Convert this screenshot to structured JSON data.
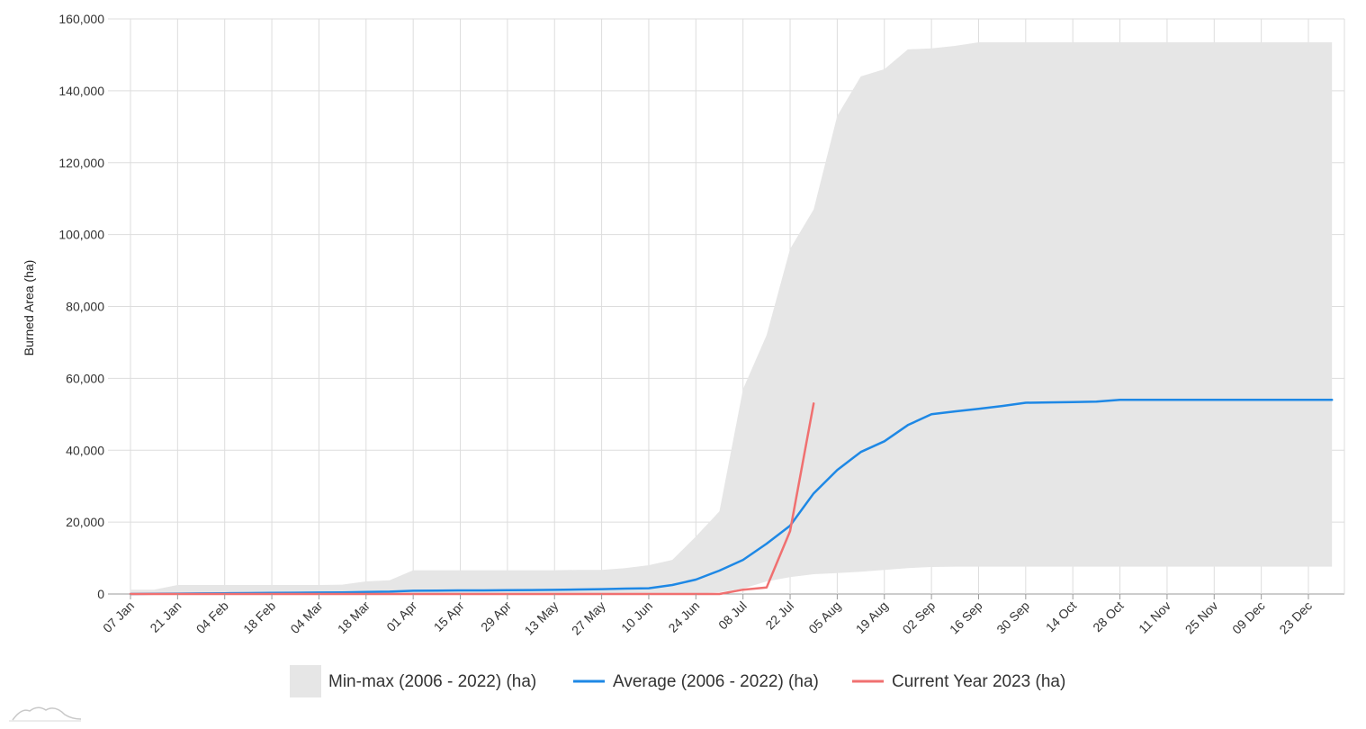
{
  "chart_data": {
    "type": "area",
    "title": "",
    "xlabel": "",
    "ylabel": "Burned Area (ha)",
    "ylim": [
      0,
      160000
    ],
    "y_ticks": [
      0,
      20000,
      40000,
      60000,
      80000,
      100000,
      120000,
      140000,
      160000
    ],
    "y_tick_labels": [
      "0",
      "20,000",
      "40,000",
      "60,000",
      "80,000",
      "100,000",
      "120,000",
      "140,000",
      "160,000"
    ],
    "x_tick_labels": [
      "07 Jan",
      "21 Jan",
      "04 Feb",
      "18 Feb",
      "04 Mar",
      "18 Mar",
      "01 Apr",
      "15 Apr",
      "29 Apr",
      "13 May",
      "27 May",
      "10 Jun",
      "24 Jun",
      "08 Jul",
      "22 Jul",
      "05 Aug",
      "19 Aug",
      "02 Sep",
      "16 Sep",
      "30 Sep",
      "14 Oct",
      "28 Oct",
      "11 Nov",
      "25 Nov",
      "09 Dec",
      "23 Dec"
    ],
    "x": [
      "07 Jan",
      "14 Jan",
      "21 Jan",
      "28 Jan",
      "04 Feb",
      "11 Feb",
      "18 Feb",
      "25 Feb",
      "04 Mar",
      "11 Mar",
      "18 Mar",
      "25 Mar",
      "01 Apr",
      "08 Apr",
      "15 Apr",
      "22 Apr",
      "29 Apr",
      "06 May",
      "13 May",
      "20 May",
      "27 May",
      "03 Jun",
      "10 Jun",
      "17 Jun",
      "24 Jun",
      "01 Jul",
      "08 Jul",
      "15 Jul",
      "22 Jul",
      "29 Jul",
      "05 Aug",
      "12 Aug",
      "19 Aug",
      "26 Aug",
      "02 Sep",
      "09 Sep",
      "16 Sep",
      "23 Sep",
      "30 Sep",
      "07 Oct",
      "14 Oct",
      "21 Oct",
      "28 Oct",
      "04 Nov",
      "11 Nov",
      "18 Nov",
      "25 Nov",
      "02 Dec",
      "09 Dec",
      "16 Dec",
      "23 Dec",
      "30 Dec"
    ],
    "series": [
      {
        "name": "Min-max (2006 - 2022) (ha)",
        "kind": "range",
        "color": "#e6e6e6",
        "min": [
          0,
          0,
          0,
          0,
          0,
          0,
          0,
          0,
          0,
          0,
          0,
          0,
          0,
          0,
          0,
          0,
          0,
          0,
          0,
          0,
          0,
          0,
          0,
          0,
          0,
          500,
          1500,
          3500,
          4700,
          5500,
          5800,
          6200,
          6700,
          7200,
          7500,
          7600,
          7600,
          7600,
          7600,
          7600,
          7600,
          7600,
          7600,
          7600,
          7600,
          7600,
          7600,
          7600,
          7600,
          7600,
          7600,
          7600
        ],
        "max": [
          1200,
          1200,
          2500,
          2500,
          2500,
          2500,
          2500,
          2500,
          2500,
          2600,
          3500,
          3800,
          6600,
          6600,
          6600,
          6600,
          6600,
          6600,
          6600,
          6700,
          6700,
          7200,
          8000,
          9500,
          16000,
          23000,
          57000,
          72000,
          96000,
          107000,
          133000,
          144000,
          146000,
          151500,
          151800,
          152500,
          153500,
          153500,
          153500,
          153500,
          153500,
          153500,
          153500,
          153500,
          153500,
          153500,
          153500,
          153500,
          153500,
          153500,
          153500,
          153500
        ]
      },
      {
        "name": "Average (2006 - 2022) (ha)",
        "kind": "line",
        "color": "#1e88e5",
        "values": [
          0,
          50,
          100,
          150,
          200,
          250,
          300,
          350,
          400,
          450,
          550,
          650,
          900,
          950,
          1000,
          1000,
          1050,
          1100,
          1150,
          1250,
          1350,
          1500,
          1600,
          2500,
          4000,
          6500,
          9500,
          14000,
          19000,
          28000,
          34500,
          39500,
          42500,
          47000,
          50000,
          50800,
          51500,
          52300,
          53200,
          53300,
          53400,
          53500,
          54000,
          54000,
          54000,
          54000,
          54000,
          54000,
          54000,
          54000,
          54000,
          54000
        ]
      },
      {
        "name": "Current Year 2023 (ha)",
        "kind": "line",
        "color": "#f07070",
        "values": [
          0,
          0,
          0,
          0,
          0,
          0,
          0,
          0,
          0,
          0,
          0,
          0,
          0,
          0,
          0,
          0,
          0,
          0,
          0,
          0,
          0,
          0,
          0,
          0,
          0,
          0,
          1200,
          1800,
          17500,
          53000,
          null,
          null,
          null,
          null,
          null,
          null,
          null,
          null,
          null,
          null,
          null,
          null,
          null,
          null,
          null,
          null,
          null,
          null,
          null,
          null,
          null,
          null
        ]
      }
    ],
    "grid": true,
    "legend_position": "bottom"
  },
  "legend": {
    "minmax_label": "Min-max (2006 - 2022) (ha)",
    "average_label": "Average (2006 - 2022) (ha)",
    "current_label": "Current Year 2023 (ha)"
  }
}
